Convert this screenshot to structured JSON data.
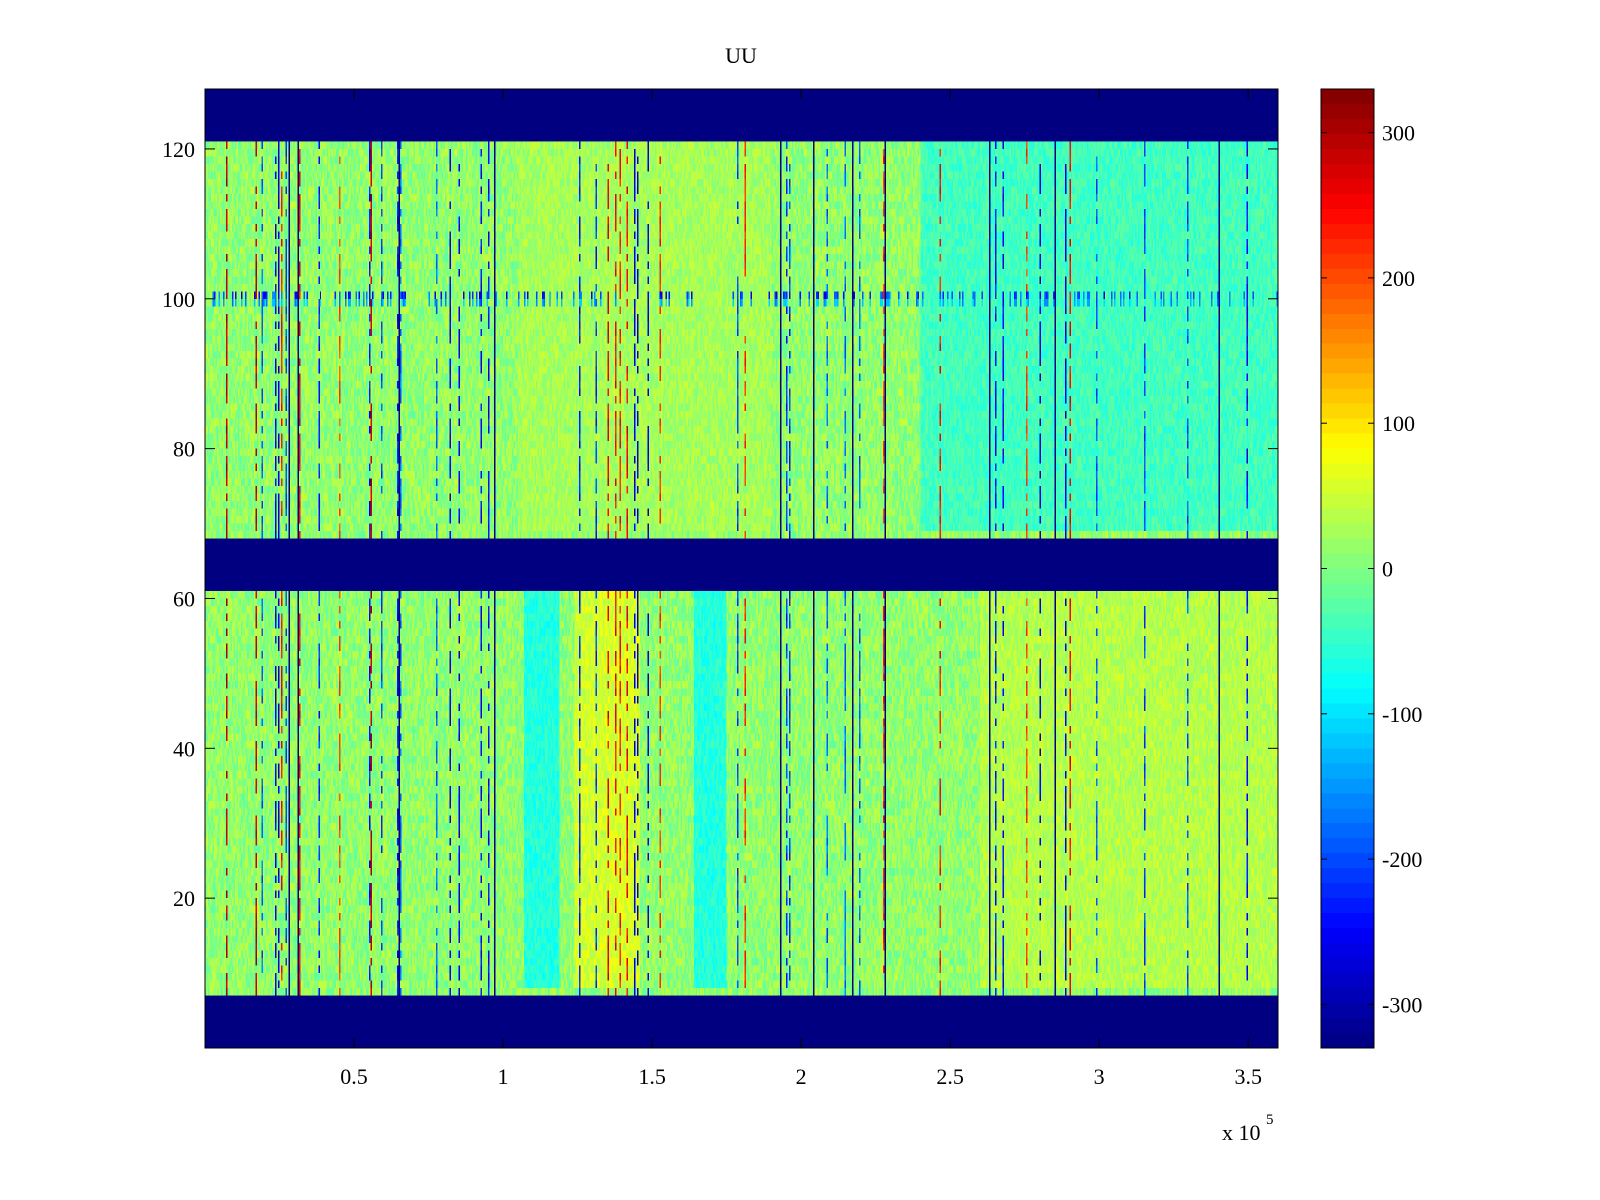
{
  "chart_data": {
    "type": "heatmap",
    "title": "UU",
    "xlabel": "",
    "ylabel": "",
    "x_exponent_label": "x 10",
    "x_exponent_power": "5",
    "xlim": [
      0.0,
      3.6
    ],
    "ylim": [
      0,
      128
    ],
    "xticks": [
      0.5,
      1,
      1.5,
      2,
      2.5,
      3,
      3.5
    ],
    "xtick_labels": [
      "0.5",
      "1",
      "1.5",
      "2",
      "2.5",
      "3",
      "3.5"
    ],
    "yticks": [
      20,
      40,
      60,
      80,
      100,
      120
    ],
    "ytick_labels": [
      "20",
      "40",
      "60",
      "80",
      "100",
      "120"
    ],
    "colormap": "jet",
    "clim": [
      -330,
      330
    ],
    "colorbar": {
      "placement": "right",
      "ticks": [
        300,
        200,
        100,
        0,
        -100,
        -200,
        -300
      ],
      "tick_labels": [
        "300",
        "200",
        "100",
        "0",
        "-100",
        "-200",
        "-300"
      ]
    },
    "background_value": 12,
    "masked_value": -330,
    "masked_row_bands": [
      [
        0,
        7
      ],
      [
        61,
        68
      ],
      [
        121,
        128
      ]
    ],
    "dark_vertical_lines_x": [
      0.28,
      0.31,
      0.65,
      0.97,
      1.93,
      2.04,
      2.17,
      2.28,
      2.63,
      2.85,
      3.4
    ],
    "features": [
      {
        "x": [
          1.07,
          1.19
        ],
        "y": [
          54,
          59
        ],
        "value": -230
      },
      {
        "x": [
          1.07,
          1.19
        ],
        "y": [
          45,
          53
        ],
        "value": -120
      },
      {
        "x": [
          1.07,
          1.19
        ],
        "y": [
          20,
          28
        ],
        "value": -170
      },
      {
        "x": [
          1.07,
          1.19
        ],
        "y": [
          10,
          14
        ],
        "value": -120
      },
      {
        "x": [
          1.07,
          1.19
        ],
        "y": [
          8,
          62
        ],
        "value": -60
      },
      {
        "x": [
          1.64,
          1.75
        ],
        "y": [
          54,
          59
        ],
        "value": -230
      },
      {
        "x": [
          1.64,
          1.75
        ],
        "y": [
          45,
          53
        ],
        "value": -120
      },
      {
        "x": [
          1.64,
          1.75
        ],
        "y": [
          20,
          28
        ],
        "value": -170
      },
      {
        "x": [
          1.64,
          1.75
        ],
        "y": [
          10,
          14
        ],
        "value": -120
      },
      {
        "x": [
          1.64,
          1.75
        ],
        "y": [
          8,
          62
        ],
        "value": -60
      },
      {
        "x": [
          1.24,
          1.46
        ],
        "y": [
          8,
          62
        ],
        "value": 55
      },
      {
        "x": [
          1.09,
          1.19
        ],
        "y": [
          71,
          75
        ],
        "value": 95
      },
      {
        "x": [
          1.64,
          1.75
        ],
        "y": [
          71,
          75
        ],
        "value": 95
      },
      {
        "x": [
          1.09,
          1.19
        ],
        "y": [
          110,
          114
        ],
        "value": 70
      },
      {
        "x": [
          1.64,
          1.75
        ],
        "y": [
          110,
          114
        ],
        "value": 70
      },
      {
        "x": [
          1.05,
          1.9
        ],
        "y": [
          69,
          121
        ],
        "value": 25
      },
      {
        "x": [
          2.4,
          3.6
        ],
        "y": [
          69,
          121
        ],
        "value": -40
      },
      {
        "x": [
          2.6,
          3.6
        ],
        "y": [
          8,
          62
        ],
        "value": 35
      }
    ]
  }
}
